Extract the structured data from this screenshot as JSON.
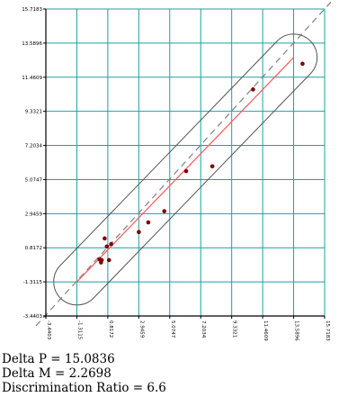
{
  "chart_data": {
    "type": "scatter",
    "title": "",
    "xlabel": "",
    "ylabel": "",
    "xlim": [
      -3.4403,
      15.7183
    ],
    "ylim": [
      -3.4403,
      15.7183
    ],
    "x_ticks": [
      "-3.4403",
      "-1.3115",
      "0.8172",
      "2.9459",
      "5.0747",
      "7.2034",
      "9.3321",
      "11.4609",
      "13.5896",
      "15.7183"
    ],
    "y_ticks": [
      "-3.4403",
      "-1.3115",
      "0.8172",
      "2.9459",
      "5.0747",
      "7.2034",
      "9.3321",
      "11.4609",
      "13.5896",
      "15.7183"
    ],
    "grid": true,
    "diagonal": "y = x (dashed)",
    "fit_line": {
      "from": [
        -1.3,
        -1.3
      ],
      "to": [
        13.6,
        12.7
      ]
    },
    "envelope": {
      "start": [
        -1.3,
        -1.3
      ],
      "end": [
        13.6,
        12.7
      ],
      "half_width": 1.6
    },
    "points": [
      {
        "x": 0.25,
        "y": 0.1
      },
      {
        "x": 0.35,
        "y": -0.1
      },
      {
        "x": 0.4,
        "y": 0.05
      },
      {
        "x": 0.6,
        "y": 1.4
      },
      {
        "x": 0.75,
        "y": 0.9
      },
      {
        "x": 0.9,
        "y": 0.05
      },
      {
        "x": 1.05,
        "y": 1.05
      },
      {
        "x": 2.95,
        "y": 1.8
      },
      {
        "x": 3.6,
        "y": 2.4
      },
      {
        "x": 4.7,
        "y": 3.1
      },
      {
        "x": 6.2,
        "y": 5.6
      },
      {
        "x": 8.0,
        "y": 5.9
      },
      {
        "x": 10.8,
        "y": 10.7
      },
      {
        "x": 14.2,
        "y": 12.3
      }
    ],
    "colors": {
      "grid": "#1aa39f",
      "diagonal": "#808080",
      "fit_line": "#ff5a5a",
      "envelope": "#555555",
      "points": "#800000",
      "axes": "#000000"
    }
  },
  "stats": {
    "delta_p": "Delta P = 15.0836",
    "delta_m": "Delta M = 2.2698",
    "discrimination_ratio": "Discrimination Ratio = 6.6"
  }
}
